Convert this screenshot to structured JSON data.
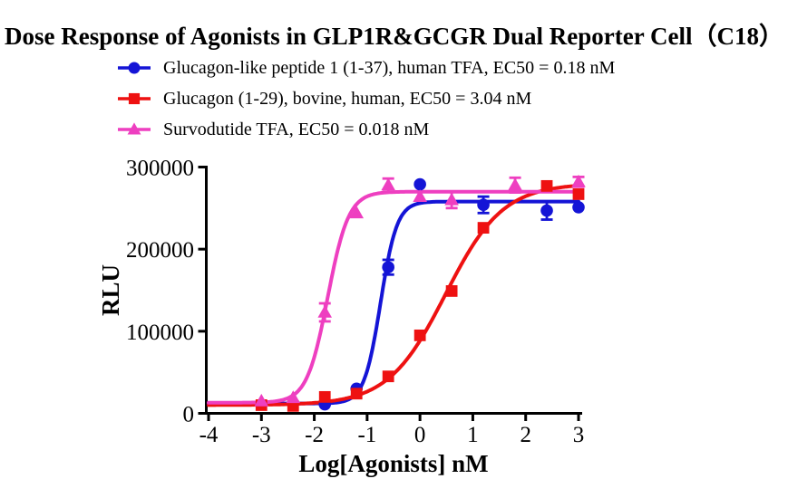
{
  "chart_data": {
    "type": "line",
    "title": "Dose Response of Agonists in GLP1R&GCGR Dual Reporter Cell（C18）",
    "xlabel": "Log[Agonists] nM",
    "ylabel": "RLU",
    "xlim": [
      -4,
      3
    ],
    "ylim": [
      0,
      300000
    ],
    "x_ticks": [
      -4,
      -3,
      -2,
      -1,
      0,
      1,
      2,
      3
    ],
    "y_ticks": [
      0,
      100000,
      200000,
      300000
    ],
    "grid": false,
    "legend_position": "top-left",
    "axis_color": "#000000",
    "background_color": "#ffffff",
    "curve_model": "four-parameter logistic: y = bottom + (top-bottom)/(1+10^(hill*(logEC50-x)))",
    "series": [
      {
        "name": "Glucagon-like peptide 1 (1-37), human TFA, EC50 = 0.18 nM",
        "color": "#1414d6",
        "marker": "circle",
        "ec50_nM": 0.18,
        "fit": {
          "bottom": 12000,
          "top": 258000,
          "logEC50": -0.745,
          "hill": 2.8
        },
        "points": [
          {
            "x": -1.8,
            "y": 11000
          },
          {
            "x": -1.2,
            "y": 30000
          },
          {
            "x": -0.6,
            "y": 178000,
            "err": 9000
          },
          {
            "x": 0,
            "y": 279000
          },
          {
            "x": 1.2,
            "y": 254000,
            "err": 10000
          },
          {
            "x": 2.4,
            "y": 247000,
            "err": 11000
          },
          {
            "x": 3,
            "y": 251000
          }
        ]
      },
      {
        "name": "Glucagon (1-29), bovine, human, EC50 = 3.04 nM",
        "color": "#ee1111",
        "marker": "square",
        "ec50_nM": 3.04,
        "fit": {
          "bottom": 10000,
          "top": 280000,
          "logEC50": 0.483,
          "hill": 0.8
        },
        "points": [
          {
            "x": -3,
            "y": 10000
          },
          {
            "x": -2.4,
            "y": 9000
          },
          {
            "x": -1.8,
            "y": 20000
          },
          {
            "x": -1.2,
            "y": 24000
          },
          {
            "x": -0.6,
            "y": 45000
          },
          {
            "x": 0,
            "y": 95000
          },
          {
            "x": 0.6,
            "y": 149000
          },
          {
            "x": 1.2,
            "y": 226000
          },
          {
            "x": 2.4,
            "y": 277000
          },
          {
            "x": 3,
            "y": 267000
          }
        ]
      },
      {
        "name": "Survodutide TFA, EC50 = 0.018 nM",
        "color": "#ee3fc0",
        "marker": "triangle",
        "ec50_nM": 0.018,
        "fit": {
          "bottom": 13000,
          "top": 270000,
          "logEC50": -1.745,
          "hill": 2.2
        },
        "points": [
          {
            "x": -3,
            "y": 15000
          },
          {
            "x": -2.4,
            "y": 19000
          },
          {
            "x": -1.8,
            "y": 123000,
            "err": 11000
          },
          {
            "x": -1.2,
            "y": 244000
          },
          {
            "x": -0.6,
            "y": 278000,
            "err": 8000
          },
          {
            "x": 0,
            "y": 264000
          },
          {
            "x": 0.6,
            "y": 260000,
            "err": 10000
          },
          {
            "x": 1.8,
            "y": 278000,
            "err": 9000
          },
          {
            "x": 3,
            "y": 282000,
            "err": 6000
          }
        ]
      }
    ]
  }
}
